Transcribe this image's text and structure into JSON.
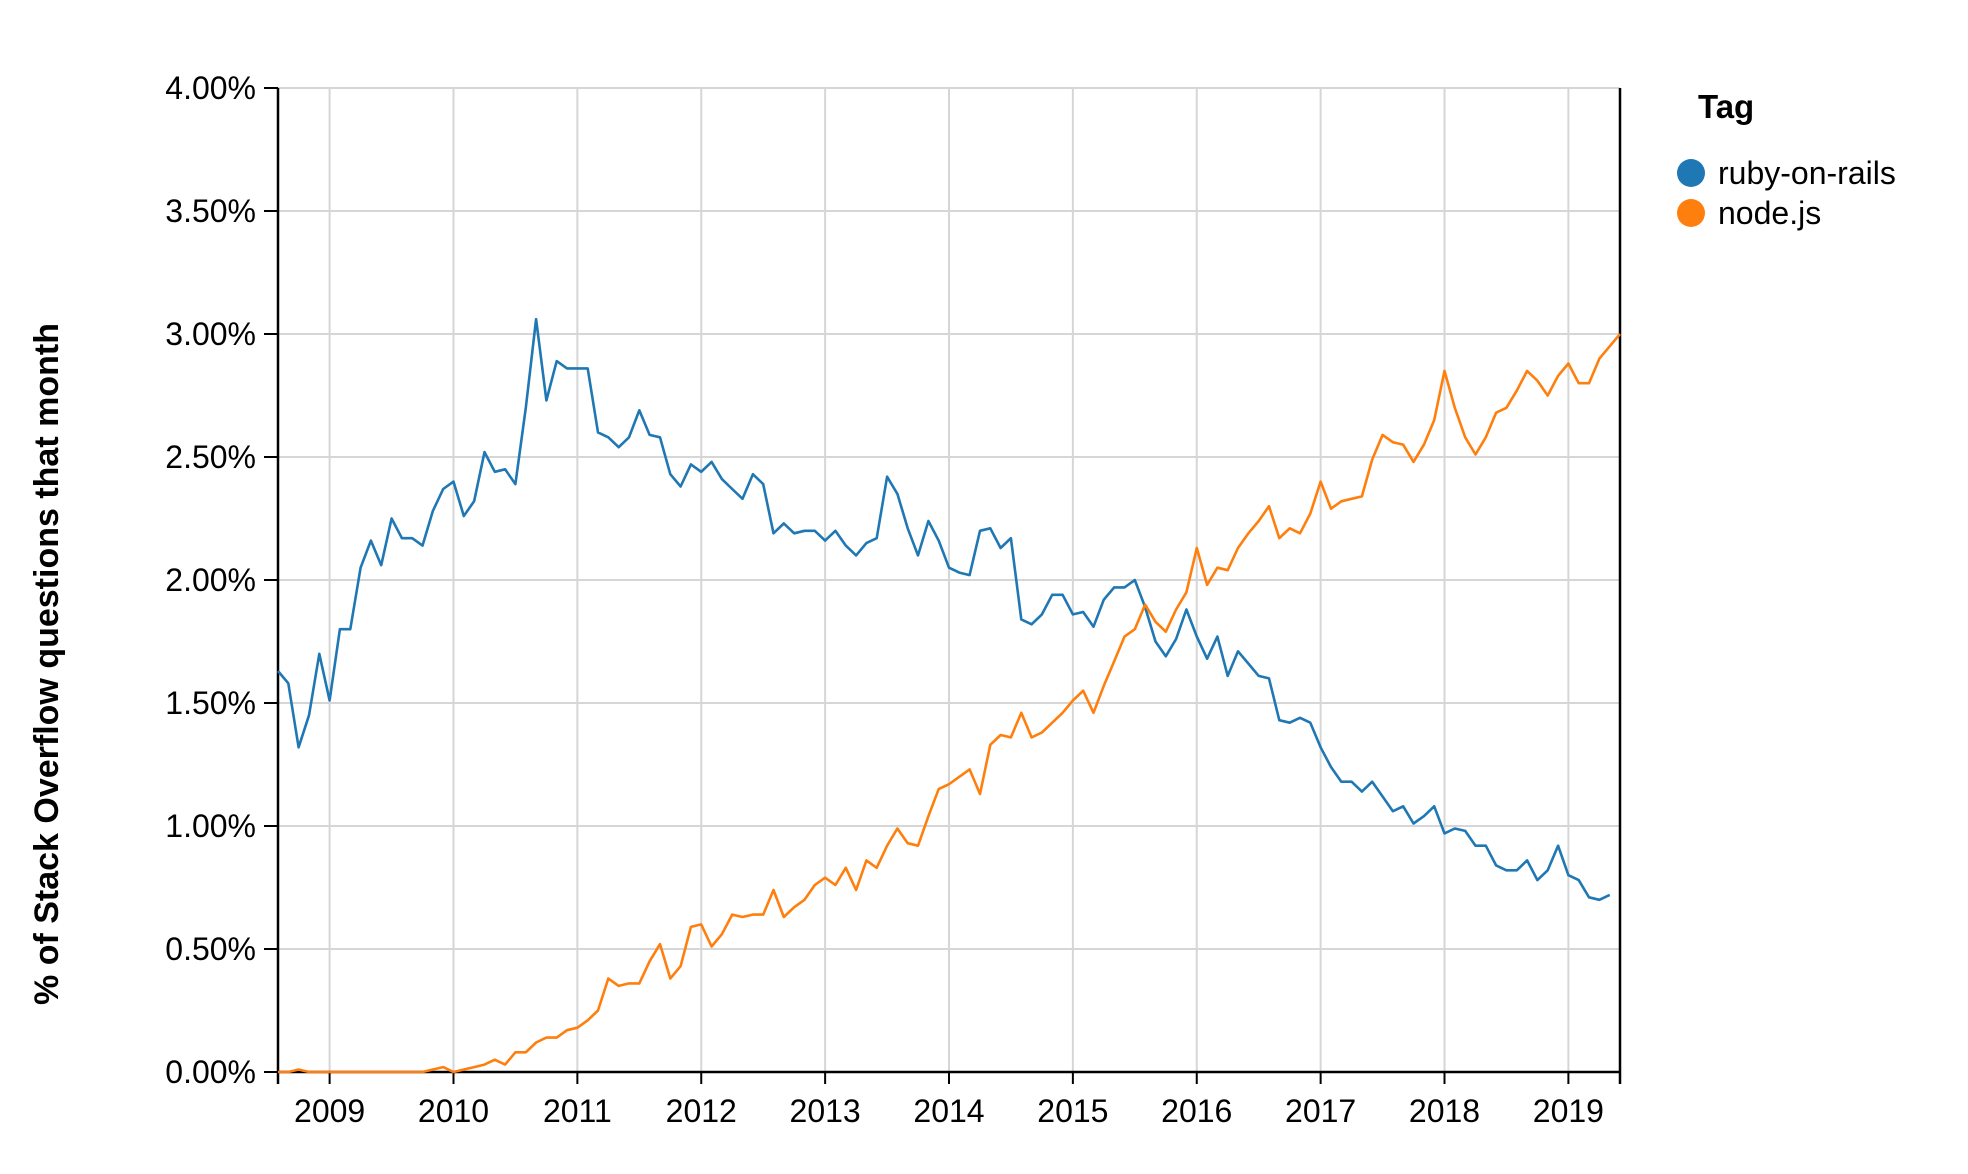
{
  "chart_data": {
    "type": "line",
    "ylabel": "% of Stack Overflow questions that month",
    "xlabel": "",
    "title": "",
    "x_range": [
      "2008-08",
      "2019-06"
    ],
    "ylim": [
      0,
      4
    ],
    "y_ticks": [
      "0.00%",
      "0.50%",
      "1.00%",
      "1.50%",
      "2.00%",
      "2.50%",
      "3.00%",
      "3.50%",
      "4.00%"
    ],
    "x_ticks": [
      "2009",
      "2010",
      "2011",
      "2012",
      "2013",
      "2014",
      "2015",
      "2016",
      "2017",
      "2018",
      "2019"
    ],
    "grid": true,
    "legend": {
      "title": "Tag",
      "position": "top-right"
    },
    "series": [
      {
        "name": "ruby-on-rails",
        "color": "#1f77b4",
        "points": [
          [
            "2008-08",
            1.63
          ],
          [
            "2008-09",
            1.58
          ],
          [
            "2008-10",
            1.32
          ],
          [
            "2008-11",
            1.45
          ],
          [
            "2008-12",
            1.7
          ],
          [
            "2009-01",
            1.51
          ],
          [
            "2009-02",
            1.8
          ],
          [
            "2009-03",
            1.8
          ],
          [
            "2009-04",
            2.05
          ],
          [
            "2009-05",
            2.16
          ],
          [
            "2009-06",
            2.06
          ],
          [
            "2009-07",
            2.25
          ],
          [
            "2009-08",
            2.17
          ],
          [
            "2009-09",
            2.17
          ],
          [
            "2009-10",
            2.14
          ],
          [
            "2009-11",
            2.28
          ],
          [
            "2009-12",
            2.37
          ],
          [
            "2010-01",
            2.4
          ],
          [
            "2010-02",
            2.26
          ],
          [
            "2010-03",
            2.32
          ],
          [
            "2010-04",
            2.52
          ],
          [
            "2010-05",
            2.44
          ],
          [
            "2010-06",
            2.45
          ],
          [
            "2010-07",
            2.39
          ],
          [
            "2010-08",
            2.7
          ],
          [
            "2010-09",
            3.06
          ],
          [
            "2010-10",
            2.73
          ],
          [
            "2010-11",
            2.89
          ],
          [
            "2010-12",
            2.86
          ],
          [
            "2011-01",
            2.86
          ],
          [
            "2011-02",
            2.86
          ],
          [
            "2011-03",
            2.6
          ],
          [
            "2011-04",
            2.58
          ],
          [
            "2011-05",
            2.54
          ],
          [
            "2011-06",
            2.58
          ],
          [
            "2011-07",
            2.69
          ],
          [
            "2011-08",
            2.59
          ],
          [
            "2011-09",
            2.58
          ],
          [
            "2011-10",
            2.43
          ],
          [
            "2011-11",
            2.38
          ],
          [
            "2011-12",
            2.47
          ],
          [
            "2012-01",
            2.44
          ],
          [
            "2012-02",
            2.48
          ],
          [
            "2012-03",
            2.41
          ],
          [
            "2012-04",
            2.37
          ],
          [
            "2012-05",
            2.33
          ],
          [
            "2012-06",
            2.43
          ],
          [
            "2012-07",
            2.39
          ],
          [
            "2012-08",
            2.19
          ],
          [
            "2012-09",
            2.23
          ],
          [
            "2012-10",
            2.19
          ],
          [
            "2012-11",
            2.2
          ],
          [
            "2012-12",
            2.2
          ],
          [
            "2013-01",
            2.16
          ],
          [
            "2013-02",
            2.2
          ],
          [
            "2013-03",
            2.14
          ],
          [
            "2013-04",
            2.1
          ],
          [
            "2013-05",
            2.15
          ],
          [
            "2013-06",
            2.17
          ],
          [
            "2013-07",
            2.42
          ],
          [
            "2013-08",
            2.35
          ],
          [
            "2013-09",
            2.21
          ],
          [
            "2013-10",
            2.1
          ],
          [
            "2013-11",
            2.24
          ],
          [
            "2013-12",
            2.16
          ],
          [
            "2014-01",
            2.05
          ],
          [
            "2014-02",
            2.03
          ],
          [
            "2014-03",
            2.02
          ],
          [
            "2014-04",
            2.2
          ],
          [
            "2014-05",
            2.21
          ],
          [
            "2014-06",
            2.13
          ],
          [
            "2014-07",
            2.17
          ],
          [
            "2014-08",
            1.84
          ],
          [
            "2014-09",
            1.82
          ],
          [
            "2014-10",
            1.86
          ],
          [
            "2014-11",
            1.94
          ],
          [
            "2014-12",
            1.94
          ],
          [
            "2015-01",
            1.86
          ],
          [
            "2015-02",
            1.87
          ],
          [
            "2015-03",
            1.81
          ],
          [
            "2015-04",
            1.92
          ],
          [
            "2015-05",
            1.97
          ],
          [
            "2015-06",
            1.97
          ],
          [
            "2015-07",
            2.0
          ],
          [
            "2015-08",
            1.89
          ],
          [
            "2015-09",
            1.75
          ],
          [
            "2015-10",
            1.69
          ],
          [
            "2015-11",
            1.76
          ],
          [
            "2015-12",
            1.88
          ],
          [
            "2016-01",
            1.77
          ],
          [
            "2016-02",
            1.68
          ],
          [
            "2016-03",
            1.77
          ],
          [
            "2016-04",
            1.61
          ],
          [
            "2016-05",
            1.71
          ],
          [
            "2016-06",
            1.66
          ],
          [
            "2016-07",
            1.61
          ],
          [
            "2016-08",
            1.6
          ],
          [
            "2016-09",
            1.43
          ],
          [
            "2016-10",
            1.42
          ],
          [
            "2016-11",
            1.44
          ],
          [
            "2016-12",
            1.42
          ],
          [
            "2017-01",
            1.32
          ],
          [
            "2017-02",
            1.24
          ],
          [
            "2017-03",
            1.18
          ],
          [
            "2017-04",
            1.18
          ],
          [
            "2017-05",
            1.14
          ],
          [
            "2017-06",
            1.18
          ],
          [
            "2017-07",
            1.12
          ],
          [
            "2017-08",
            1.06
          ],
          [
            "2017-09",
            1.08
          ],
          [
            "2017-10",
            1.01
          ],
          [
            "2017-11",
            1.04
          ],
          [
            "2017-12",
            1.08
          ],
          [
            "2018-01",
            0.97
          ],
          [
            "2018-02",
            0.99
          ],
          [
            "2018-03",
            0.98
          ],
          [
            "2018-04",
            0.92
          ],
          [
            "2018-05",
            0.92
          ],
          [
            "2018-06",
            0.84
          ],
          [
            "2018-07",
            0.82
          ],
          [
            "2018-08",
            0.82
          ],
          [
            "2018-09",
            0.86
          ],
          [
            "2018-10",
            0.78
          ],
          [
            "2018-11",
            0.82
          ],
          [
            "2018-12",
            0.92
          ],
          [
            "2019-01",
            0.8
          ],
          [
            "2019-02",
            0.78
          ],
          [
            "2019-03",
            0.71
          ],
          [
            "2019-04",
            0.7
          ],
          [
            "2019-05",
            0.72
          ]
        ]
      },
      {
        "name": "node.js",
        "color": "#ff7f0e",
        "points": [
          [
            "2008-08",
            0.0
          ],
          [
            "2008-09",
            0.0
          ],
          [
            "2008-10",
            0.01
          ],
          [
            "2008-11",
            0.0
          ],
          [
            "2008-12",
            0.0
          ],
          [
            "2009-01",
            0.0
          ],
          [
            "2009-02",
            0.0
          ],
          [
            "2009-03",
            0.0
          ],
          [
            "2009-04",
            0.0
          ],
          [
            "2009-05",
            0.0
          ],
          [
            "2009-06",
            0.0
          ],
          [
            "2009-07",
            0.0
          ],
          [
            "2009-08",
            0.0
          ],
          [
            "2009-09",
            0.0
          ],
          [
            "2009-10",
            0.0
          ],
          [
            "2009-11",
            0.01
          ],
          [
            "2009-12",
            0.02
          ],
          [
            "2010-01",
            0.0
          ],
          [
            "2010-02",
            0.01
          ],
          [
            "2010-03",
            0.02
          ],
          [
            "2010-04",
            0.03
          ],
          [
            "2010-05",
            0.05
          ],
          [
            "2010-06",
            0.03
          ],
          [
            "2010-07",
            0.08
          ],
          [
            "2010-08",
            0.08
          ],
          [
            "2010-09",
            0.12
          ],
          [
            "2010-10",
            0.14
          ],
          [
            "2010-11",
            0.14
          ],
          [
            "2010-12",
            0.17
          ],
          [
            "2011-01",
            0.18
          ],
          [
            "2011-02",
            0.21
          ],
          [
            "2011-03",
            0.25
          ],
          [
            "2011-04",
            0.38
          ],
          [
            "2011-05",
            0.35
          ],
          [
            "2011-06",
            0.36
          ],
          [
            "2011-07",
            0.36
          ],
          [
            "2011-08",
            0.45
          ],
          [
            "2011-09",
            0.52
          ],
          [
            "2011-10",
            0.38
          ],
          [
            "2011-11",
            0.43
          ],
          [
            "2011-12",
            0.59
          ],
          [
            "2012-01",
            0.6
          ],
          [
            "2012-02",
            0.51
          ],
          [
            "2012-03",
            0.56
          ],
          [
            "2012-04",
            0.64
          ],
          [
            "2012-05",
            0.63
          ],
          [
            "2012-06",
            0.64
          ],
          [
            "2012-07",
            0.64
          ],
          [
            "2012-08",
            0.74
          ],
          [
            "2012-09",
            0.63
          ],
          [
            "2012-10",
            0.67
          ],
          [
            "2012-11",
            0.7
          ],
          [
            "2012-12",
            0.76
          ],
          [
            "2013-01",
            0.79
          ],
          [
            "2013-02",
            0.76
          ],
          [
            "2013-03",
            0.83
          ],
          [
            "2013-04",
            0.74
          ],
          [
            "2013-05",
            0.86
          ],
          [
            "2013-06",
            0.83
          ],
          [
            "2013-07",
            0.92
          ],
          [
            "2013-08",
            0.99
          ],
          [
            "2013-09",
            0.93
          ],
          [
            "2013-10",
            0.92
          ],
          [
            "2013-11",
            1.04
          ],
          [
            "2013-12",
            1.15
          ],
          [
            "2014-01",
            1.17
          ],
          [
            "2014-02",
            1.2
          ],
          [
            "2014-03",
            1.23
          ],
          [
            "2014-04",
            1.13
          ],
          [
            "2014-05",
            1.33
          ],
          [
            "2014-06",
            1.37
          ],
          [
            "2014-07",
            1.36
          ],
          [
            "2014-08",
            1.46
          ],
          [
            "2014-09",
            1.36
          ],
          [
            "2014-10",
            1.38
          ],
          [
            "2014-11",
            1.42
          ],
          [
            "2014-12",
            1.46
          ],
          [
            "2015-01",
            1.51
          ],
          [
            "2015-02",
            1.55
          ],
          [
            "2015-03",
            1.46
          ],
          [
            "2015-04",
            1.57
          ],
          [
            "2015-05",
            1.67
          ],
          [
            "2015-06",
            1.77
          ],
          [
            "2015-07",
            1.8
          ],
          [
            "2015-08",
            1.9
          ],
          [
            "2015-09",
            1.83
          ],
          [
            "2015-10",
            1.79
          ],
          [
            "2015-11",
            1.88
          ],
          [
            "2015-12",
            1.95
          ],
          [
            "2016-01",
            2.13
          ],
          [
            "2016-02",
            1.98
          ],
          [
            "2016-03",
            2.05
          ],
          [
            "2016-04",
            2.04
          ],
          [
            "2016-05",
            2.13
          ],
          [
            "2016-06",
            2.19
          ],
          [
            "2016-07",
            2.24
          ],
          [
            "2016-08",
            2.3
          ],
          [
            "2016-09",
            2.17
          ],
          [
            "2016-10",
            2.21
          ],
          [
            "2016-11",
            2.19
          ],
          [
            "2016-12",
            2.27
          ],
          [
            "2017-01",
            2.4
          ],
          [
            "2017-02",
            2.29
          ],
          [
            "2017-03",
            2.32
          ],
          [
            "2017-04",
            2.33
          ],
          [
            "2017-05",
            2.34
          ],
          [
            "2017-06",
            2.49
          ],
          [
            "2017-07",
            2.59
          ],
          [
            "2017-08",
            2.56
          ],
          [
            "2017-09",
            2.55
          ],
          [
            "2017-10",
            2.48
          ],
          [
            "2017-11",
            2.55
          ],
          [
            "2017-12",
            2.65
          ],
          [
            "2018-01",
            2.85
          ],
          [
            "2018-02",
            2.7
          ],
          [
            "2018-03",
            2.58
          ],
          [
            "2018-04",
            2.51
          ],
          [
            "2018-05",
            2.58
          ],
          [
            "2018-06",
            2.68
          ],
          [
            "2018-07",
            2.7
          ],
          [
            "2018-08",
            2.77
          ],
          [
            "2018-09",
            2.85
          ],
          [
            "2018-10",
            2.81
          ],
          [
            "2018-11",
            2.75
          ],
          [
            "2018-12",
            2.83
          ],
          [
            "2019-01",
            2.88
          ],
          [
            "2019-02",
            2.8
          ],
          [
            "2019-03",
            2.8
          ],
          [
            "2019-04",
            2.9
          ],
          [
            "2019-05",
            2.95
          ],
          [
            "2019-06",
            3.0
          ]
        ]
      }
    ]
  }
}
